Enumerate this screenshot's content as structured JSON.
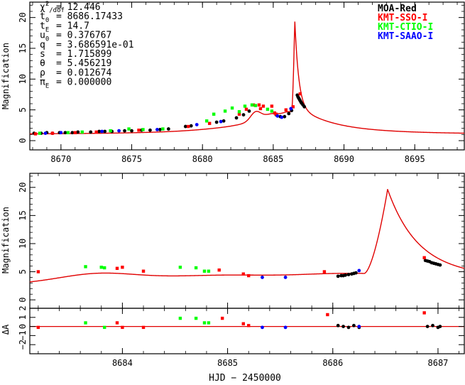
{
  "chart_data": [
    {
      "type": "scatter",
      "title": "",
      "xlabel": "",
      "ylabel": "Magnification",
      "xlim": [
        8667.8,
        8698.5
      ],
      "ylim": [
        -1.5,
        22.5
      ],
      "xticks": [
        8670,
        8675,
        8680,
        8685,
        8690,
        8695
      ],
      "yticks": [
        0,
        5,
        10,
        15,
        20
      ],
      "grid": false,
      "legend_position": "top-right",
      "fit_params": [
        {
          "label": "χ²/dof",
          "value": "= 12.446"
        },
        {
          "label": "t0",
          "value": "= 8686.17433"
        },
        {
          "label": "tE",
          "value": "= 14.7"
        },
        {
          "label": "u0",
          "value": "= 0.376767"
        },
        {
          "label": "q",
          "value": "= 3.686591e-01"
        },
        {
          "label": "s",
          "value": "= 1.715899"
        },
        {
          "label": "θ",
          "value": "= 5.456219"
        },
        {
          "label": "ρ",
          "value": "= 0.012674"
        },
        {
          "label": "πE",
          "value": "= 0.000000"
        }
      ],
      "series": [
        {
          "name": "MOA-Red",
          "color": "#000000",
          "points": [
            [
              8668.1,
              1.2
            ],
            [
              8668.6,
              1.2
            ],
            [
              8669.0,
              1.3
            ],
            [
              8669.4,
              1.2
            ],
            [
              8669.9,
              1.3
            ],
            [
              8670.3,
              1.3
            ],
            [
              8670.8,
              1.3
            ],
            [
              8671.2,
              1.4
            ],
            [
              8672.1,
              1.4
            ],
            [
              8672.7,
              1.5
            ],
            [
              8673.1,
              1.5
            ],
            [
              8673.6,
              1.5
            ],
            [
              8674.5,
              1.6
            ],
            [
              8675.0,
              1.6
            ],
            [
              8675.7,
              1.7
            ],
            [
              8676.3,
              1.7
            ],
            [
              8677.0,
              1.8
            ],
            [
              8677.6,
              1.9
            ],
            [
              8678.8,
              2.3
            ],
            [
              8679.2,
              2.4
            ],
            [
              8681.0,
              3.0
            ],
            [
              8681.5,
              3.2
            ],
            [
              8682.4,
              3.7
            ],
            [
              8682.9,
              4.2
            ],
            [
              8683.3,
              4.8
            ],
            [
              8685.2,
              4.2
            ],
            [
              8685.5,
              3.9
            ],
            [
              8685.8,
              3.9
            ],
            [
              8686.1,
              4.4
            ],
            [
              8686.3,
              4.9
            ],
            [
              8686.7,
              7.4
            ],
            [
              8686.75,
              7.1
            ],
            [
              8686.8,
              6.9
            ],
            [
              8686.85,
              6.7
            ],
            [
              8686.9,
              6.5
            ],
            [
              8686.95,
              6.3
            ],
            [
              8687.0,
              6.1
            ],
            [
              8687.1,
              5.8
            ],
            [
              8687.2,
              5.5
            ]
          ]
        },
        {
          "name": "KMT-SSO-I",
          "color": "#ff0000",
          "points": [
            [
              8668.2,
              1.1
            ],
            [
              8669.4,
              1.2
            ],
            [
              8671.0,
              1.3
            ],
            [
              8672.5,
              1.4
            ],
            [
              8675.5,
              1.7
            ],
            [
              8679.0,
              2.3
            ],
            [
              8680.5,
              2.8
            ],
            [
              8682.6,
              4.3
            ],
            [
              8683.1,
              5.1
            ],
            [
              8683.6,
              5.8
            ],
            [
              8684.0,
              5.8
            ],
            [
              8684.1,
              5.2
            ],
            [
              8684.3,
              5.6
            ],
            [
              8684.9,
              5.6
            ],
            [
              8685.1,
              4.5
            ],
            [
              8685.2,
              4.3
            ],
            [
              8685.9,
              5.0
            ],
            [
              8686.4,
              5.5
            ],
            [
              8686.9,
              7.6
            ]
          ]
        },
        {
          "name": "KMT-CTIO-I",
          "color": "#00ff00",
          "points": [
            [
              8668.5,
              1.2
            ],
            [
              8670.5,
              1.3
            ],
            [
              8671.5,
              1.4
            ],
            [
              8673.5,
              1.6
            ],
            [
              8674.8,
              1.9
            ],
            [
              8675.8,
              1.8
            ],
            [
              8677.2,
              1.9
            ],
            [
              8680.3,
              3.2
            ],
            [
              8680.8,
              4.3
            ],
            [
              8681.6,
              4.8
            ],
            [
              8682.1,
              5.3
            ],
            [
              8682.6,
              4.7
            ],
            [
              8683.0,
              5.6
            ],
            [
              8683.5,
              5.8
            ],
            [
              8683.75,
              5.7
            ],
            [
              8684.6,
              5.1
            ],
            [
              8684.9,
              4.8
            ]
          ]
        },
        {
          "name": "KMT-SAAO-I",
          "color": "#0000ff",
          "points": [
            [
              8668.9,
              1.2
            ],
            [
              8670.0,
              1.3
            ],
            [
              8672.9,
              1.5
            ],
            [
              8674.1,
              1.6
            ],
            [
              8676.8,
              1.8
            ],
            [
              8679.6,
              2.6
            ],
            [
              8681.3,
              3.1
            ],
            [
              8685.3,
              4.0
            ],
            [
              8685.6,
              3.8
            ],
            [
              8686.25,
              5.2
            ]
          ]
        }
      ]
    },
    {
      "type": "scatter",
      "title": "",
      "xlabel": "",
      "ylabel": "Magnification",
      "xlim": [
        8683.12,
        8687.25
      ],
      "ylim": [
        -1.5,
        22.5
      ],
      "xticks": [
        8684,
        8685,
        8686,
        8687
      ],
      "yticks": [
        0,
        5,
        10,
        15,
        20
      ],
      "grid": false,
      "series": [
        {
          "name": "MOA-Red",
          "color": "#000000",
          "points": [
            [
              8686.05,
              4.2
            ],
            [
              8686.08,
              4.3
            ],
            [
              8686.1,
              4.3
            ],
            [
              8686.12,
              4.4
            ],
            [
              8686.15,
              4.5
            ],
            [
              8686.18,
              4.6
            ],
            [
              8686.2,
              4.7
            ],
            [
              8686.22,
              4.8
            ],
            [
              8686.88,
              7.0
            ],
            [
              8686.9,
              6.9
            ],
            [
              8686.92,
              6.8
            ],
            [
              8686.94,
              6.6
            ],
            [
              8686.96,
              6.5
            ],
            [
              8686.98,
              6.4
            ],
            [
              8687.0,
              6.3
            ],
            [
              8687.02,
              6.2
            ]
          ]
        },
        {
          "name": "KMT-SSO-I",
          "color": "#ff0000",
          "points": [
            [
              8683.2,
              5.0
            ],
            [
              8683.95,
              5.6
            ],
            [
              8684.0,
              5.8
            ],
            [
              8684.2,
              5.1
            ],
            [
              8684.92,
              5.3
            ],
            [
              8685.15,
              4.6
            ],
            [
              8685.2,
              4.3
            ],
            [
              8685.92,
              5.0
            ],
            [
              8686.87,
              7.5
            ]
          ]
        },
        {
          "name": "KMT-CTIO-I",
          "color": "#00ff00",
          "points": [
            [
              8683.65,
              5.9
            ],
            [
              8683.8,
              5.8
            ],
            [
              8683.83,
              5.7
            ],
            [
              8684.55,
              5.8
            ],
            [
              8684.7,
              5.7
            ],
            [
              8684.78,
              5.1
            ],
            [
              8684.82,
              5.1
            ]
          ]
        },
        {
          "name": "KMT-SAAO-I",
          "color": "#0000ff",
          "points": [
            [
              8685.33,
              4.0
            ],
            [
              8685.55,
              4.0
            ],
            [
              8686.25,
              5.2
            ]
          ]
        }
      ]
    },
    {
      "type": "scatter",
      "title": "",
      "xlabel": "HJD − 2450000",
      "ylabel": "ΔA",
      "xlim": [
        8683.12,
        8687.25
      ],
      "ylim": [
        -3,
        2
      ],
      "xticks": [
        8684,
        8685,
        8686,
        8687
      ],
      "yticks": [
        -2,
        -1,
        0,
        1,
        2
      ],
      "ytick_labels": [
        "−2",
        "−1",
        "0",
        "1",
        "2"
      ],
      "grid": false,
      "series": [
        {
          "name": "MOA-Red",
          "color": "#000000",
          "points": [
            [
              8686.05,
              0.1
            ],
            [
              8686.1,
              0.0
            ],
            [
              8686.15,
              -0.1
            ],
            [
              8686.2,
              0.1
            ],
            [
              8686.25,
              -0.1
            ],
            [
              8686.9,
              0.0
            ],
            [
              8686.95,
              0.1
            ],
            [
              8687.0,
              -0.1
            ],
            [
              8687.02,
              0.0
            ]
          ]
        },
        {
          "name": "KMT-SSO-I",
          "color": "#ff0000",
          "points": [
            [
              8683.2,
              -0.1
            ],
            [
              8683.95,
              0.4
            ],
            [
              8684.0,
              -0.1
            ],
            [
              8684.2,
              -0.1
            ],
            [
              8684.95,
              0.9
            ],
            [
              8685.15,
              0.3
            ],
            [
              8685.2,
              0.1
            ],
            [
              8685.95,
              1.3
            ],
            [
              8686.87,
              1.5
            ]
          ]
        },
        {
          "name": "KMT-CTIO-I",
          "color": "#00ff00",
          "points": [
            [
              8683.65,
              0.4
            ],
            [
              8683.83,
              -0.1
            ],
            [
              8684.55,
              0.9
            ],
            [
              8684.7,
              0.9
            ],
            [
              8684.78,
              0.4
            ],
            [
              8684.82,
              0.4
            ]
          ]
        },
        {
          "name": "KMT-SAAO-I",
          "color": "#0000ff",
          "points": [
            [
              8685.33,
              -0.1
            ],
            [
              8685.55,
              -0.1
            ],
            [
              8686.25,
              0.0
            ]
          ]
        }
      ]
    }
  ],
  "colors": {
    "model": "#e00000",
    "axis": "#000000"
  }
}
